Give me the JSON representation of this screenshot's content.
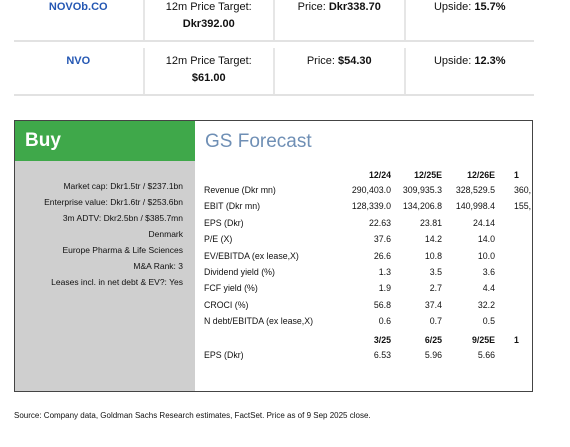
{
  "tickers": [
    {
      "symbol": "NOVOb.CO",
      "target_label": "12m Price Target:",
      "target": "Dkr392.00",
      "price_label": "Price:",
      "price": "Dkr338.70",
      "upside_label": "Upside:",
      "upside": "15.7%"
    },
    {
      "symbol": "NVO",
      "target_label": "12m Price Target:",
      "target": "$61.00",
      "price_label": "Price:",
      "price": "$54.30",
      "upside_label": "Upside:",
      "upside": "12.3%"
    }
  ],
  "rating": "Buy",
  "profile": [
    "Market cap: Dkr1.5tr / $237.1bn",
    "Enterprise value: Dkr1.6tr / $253.6bn",
    "3m ADTV: Dkr2.5bn / $385.7mn",
    "Denmark",
    "Europe Pharma & Life Sciences",
    "M&A Rank: 3",
    "Leases incl. in net debt & EV?: Yes"
  ],
  "forecast": {
    "title": "GS Forecast",
    "columns": [
      "12/24",
      "12/25E",
      "12/26E",
      "1"
    ],
    "rows": [
      {
        "label": "Revenue (Dkr mn)",
        "values": [
          "290,403.0",
          "309,935.3",
          "328,529.5",
          "360,"
        ]
      },
      {
        "label": "EBIT (Dkr mn)",
        "values": [
          "128,339.0",
          "134,206.8",
          "140,998.4",
          "155,"
        ]
      },
      {
        "label": "EPS (Dkr)",
        "values": [
          "22.63",
          "23.81",
          "24.14"
        ]
      },
      {
        "label": "P/E (X)",
        "values": [
          "37.6",
          "14.2",
          "14.0"
        ]
      },
      {
        "label": "EV/EBITDA (ex lease,X)",
        "values": [
          "26.6",
          "10.8",
          "10.0"
        ]
      },
      {
        "label": "Dividend yield (%)",
        "values": [
          "1.3",
          "3.5",
          "3.6"
        ]
      },
      {
        "label": "FCF yield (%)",
        "values": [
          "1.9",
          "2.7",
          "4.4"
        ]
      },
      {
        "label": "CROCI (%)",
        "values": [
          "56.8",
          "37.4",
          "32.2"
        ]
      },
      {
        "label": "N debt/EBITDA (ex lease,X)",
        "values": [
          "0.6",
          "0.7",
          "0.5"
        ]
      }
    ],
    "quarterly": {
      "columns": [
        "3/25",
        "6/25",
        "9/25E",
        "1"
      ],
      "rows": [
        {
          "label": "EPS (Dkr)",
          "values": [
            "6.53",
            "5.96",
            "5.66"
          ]
        }
      ]
    }
  },
  "source": "Source: Company data, Goldman Sachs Research estimates, FactSet. Price as of 9 Sep 2025 close."
}
